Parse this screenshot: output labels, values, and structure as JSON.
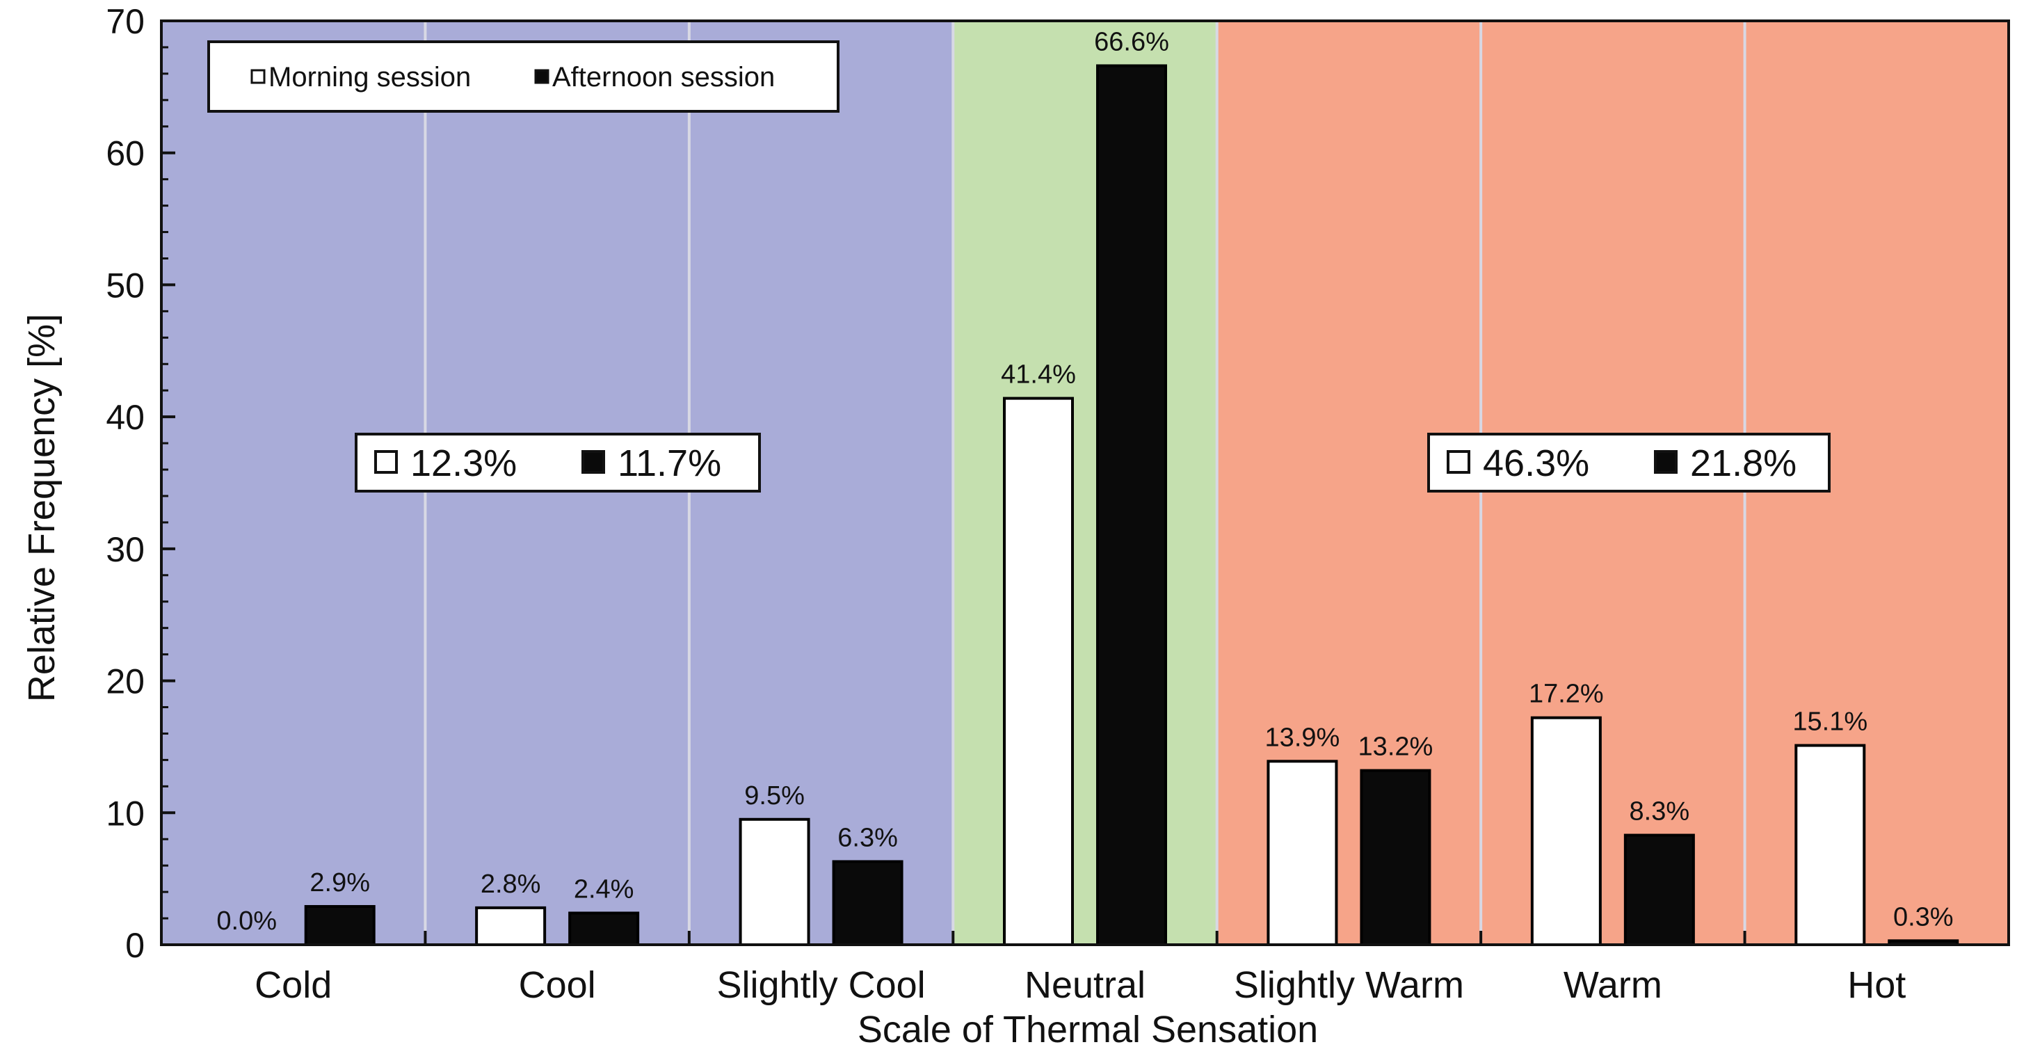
{
  "chart_data": {
    "type": "bar",
    "xlabel": "Scale of Thermal Sensation",
    "ylabel": "Relative Frequency [%]",
    "ylim": [
      0,
      70
    ],
    "yticks": [
      0,
      10,
      20,
      30,
      40,
      50,
      60,
      70
    ],
    "grid": false,
    "legend_position": "top-left",
    "categories": [
      "Cold",
      "Cool",
      "Slightly Cool",
      "Neutral",
      "Slightly Warm",
      "Warm",
      "Hot"
    ],
    "series": [
      {
        "name": "Morning session",
        "color": "#ffffff",
        "values": [
          0.0,
          2.8,
          9.5,
          41.4,
          13.9,
          17.2,
          15.1
        ],
        "labels": [
          "0.0%",
          "2.8%",
          "9.5%",
          "41.4%",
          "13.9%",
          "17.2%",
          "15.1%"
        ]
      },
      {
        "name": "Afternoon session",
        "color": "#0a0a0a",
        "values": [
          2.9,
          2.4,
          6.3,
          66.6,
          13.2,
          8.3,
          0.3
        ],
        "labels": [
          "2.9%",
          "2.4%",
          "6.3%",
          "66.6%",
          "13.2%",
          "8.3%",
          "0.3%"
        ]
      }
    ],
    "background_regions": [
      {
        "name": "cool-side",
        "from_category": "Cold",
        "to_category": "Slightly Cool",
        "color": "#a9acd8"
      },
      {
        "name": "neutral",
        "from_category": "Neutral",
        "to_category": "Neutral",
        "color": "#c5e0af"
      },
      {
        "name": "warm-side",
        "from_category": "Slightly Warm",
        "to_category": "Hot",
        "color": "#f6a489"
      }
    ],
    "annotations": [
      {
        "region": "cool-side",
        "morning": "12.3%",
        "afternoon": "11.7%"
      },
      {
        "region": "warm-side",
        "morning": "46.3%",
        "afternoon": "21.8%"
      }
    ]
  }
}
